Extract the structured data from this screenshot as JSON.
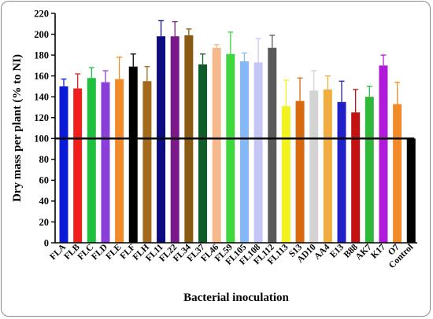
{
  "chart_data": {
    "type": "bar",
    "title": "",
    "xlabel": "Bacterial inoculation",
    "ylabel": "Dry mass per plant (% to NI)",
    "ylim": [
      0,
      220
    ],
    "yticks": [
      0,
      20,
      40,
      60,
      80,
      100,
      120,
      140,
      160,
      180,
      200,
      220
    ],
    "reference_line": 100,
    "categories": [
      "FLA",
      "FLB",
      "FLC",
      "FLD",
      "FLE",
      "FLF",
      "FLH",
      "FL11",
      "FL22",
      "FL34",
      "FL37",
      "FL46",
      "FL59",
      "FL105",
      "FL108",
      "FL112",
      "FL113",
      "S13",
      "AD10",
      "AA4",
      "E13",
      "B88",
      "AK7",
      "K17",
      "O7",
      "Control"
    ],
    "values": [
      150,
      148,
      158,
      154,
      157,
      169,
      155,
      198,
      198,
      199,
      171,
      187,
      181,
      174,
      173,
      187,
      131,
      136,
      146,
      147,
      135,
      125,
      140,
      170,
      133,
      100
    ],
    "errors": [
      7,
      14,
      10,
      11,
      21,
      12,
      14,
      15,
      14,
      6,
      10,
      3,
      21,
      8,
      23,
      12,
      25,
      22,
      19,
      13,
      20,
      22,
      10,
      10,
      21,
      0
    ],
    "colors": [
      "#0a1bd8",
      "#f01f1f",
      "#1fbf3f",
      "#8a3fd8",
      "#f28a2a",
      "#000000",
      "#a36a1e",
      "#0c0c80",
      "#7a1a8a",
      "#8a5a12",
      "#0d5c2a",
      "#f6b98c",
      "#3ed83e",
      "#84b8f6",
      "#c6c6f4",
      "#5a5a5a",
      "#f2f21f",
      "#d8690f",
      "#d3d3d3",
      "#f1ad3f",
      "#2020c8",
      "#c21212",
      "#2fb83a",
      "#b01ad8",
      "#f28a2a",
      "#000000"
    ],
    "grid": false,
    "legend": "none"
  }
}
